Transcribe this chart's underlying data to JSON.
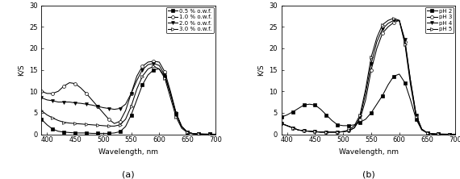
{
  "wavelengths": [
    390,
    400,
    410,
    420,
    430,
    440,
    450,
    460,
    470,
    480,
    490,
    500,
    510,
    520,
    530,
    540,
    550,
    560,
    570,
    580,
    590,
    600,
    610,
    620,
    630,
    640,
    650,
    660,
    670,
    680,
    690,
    700
  ],
  "a_series": {
    "s0p5": [
      3.5,
      2.2,
      1.2,
      0.7,
      0.5,
      0.4,
      0.3,
      0.3,
      0.3,
      0.2,
      0.2,
      0.2,
      0.2,
      0.3,
      0.6,
      1.8,
      4.5,
      8.0,
      11.5,
      13.8,
      15.0,
      15.2,
      13.5,
      9.5,
      4.8,
      1.8,
      0.5,
      0.15,
      0.05,
      0.02,
      0.01,
      0.0
    ],
    "s1p0": [
      10.0,
      9.5,
      9.5,
      10.0,
      11.2,
      12.0,
      11.8,
      10.8,
      9.5,
      8.0,
      6.5,
      5.0,
      3.5,
      2.5,
      3.0,
      5.5,
      9.5,
      13.5,
      15.8,
      16.8,
      17.0,
      16.8,
      14.5,
      10.0,
      5.0,
      1.8,
      0.5,
      0.15,
      0.05,
      0.02,
      0.01,
      0.0
    ],
    "s2p0": [
      8.5,
      8.0,
      7.8,
      7.5,
      7.5,
      7.5,
      7.3,
      7.2,
      7.0,
      6.8,
      6.5,
      6.2,
      6.0,
      5.8,
      6.0,
      7.0,
      9.5,
      12.5,
      15.0,
      16.2,
      16.5,
      16.0,
      13.8,
      9.5,
      4.8,
      1.8,
      0.5,
      0.15,
      0.05,
      0.02,
      0.01,
      0.0
    ],
    "s3p0": [
      5.5,
      4.5,
      3.8,
      3.2,
      2.8,
      2.6,
      2.5,
      2.4,
      2.3,
      2.2,
      2.1,
      2.0,
      1.9,
      1.9,
      2.2,
      3.5,
      6.5,
      10.5,
      13.5,
      15.2,
      15.8,
      15.2,
      13.0,
      8.5,
      4.0,
      1.4,
      0.4,
      0.1,
      0.03,
      0.01,
      0.0,
      0.0
    ]
  },
  "b_series": {
    "pH2": [
      4.0,
      4.5,
      5.2,
      6.0,
      6.8,
      7.0,
      6.8,
      5.8,
      4.5,
      3.2,
      2.2,
      2.0,
      2.0,
      2.2,
      2.8,
      3.5,
      5.0,
      7.0,
      9.0,
      11.5,
      13.5,
      14.0,
      12.0,
      8.0,
      3.5,
      1.0,
      0.3,
      0.08,
      0.02,
      0.01,
      0.0,
      0.0
    ],
    "pH3": [
      2.5,
      2.0,
      1.5,
      1.0,
      0.8,
      0.7,
      0.6,
      0.5,
      0.5,
      0.5,
      0.5,
      0.6,
      0.8,
      1.5,
      3.5,
      8.0,
      15.0,
      20.0,
      23.5,
      25.0,
      26.0,
      26.5,
      21.5,
      12.5,
      4.5,
      1.2,
      0.3,
      0.08,
      0.02,
      0.01,
      0.0,
      0.0
    ],
    "pH4": [
      2.5,
      2.0,
      1.5,
      1.0,
      0.8,
      0.7,
      0.6,
      0.5,
      0.5,
      0.5,
      0.5,
      0.6,
      0.8,
      1.5,
      4.0,
      9.5,
      16.5,
      21.5,
      24.5,
      25.8,
      26.5,
      26.5,
      22.0,
      12.5,
      4.5,
      1.2,
      0.3,
      0.08,
      0.02,
      0.01,
      0.0,
      0.0
    ],
    "pH5": [
      2.5,
      2.0,
      1.5,
      1.0,
      0.8,
      0.7,
      0.6,
      0.5,
      0.5,
      0.5,
      0.5,
      0.6,
      1.0,
      2.0,
      4.5,
      10.5,
      18.0,
      22.5,
      25.5,
      26.5,
      27.0,
      26.5,
      21.0,
      11.5,
      4.0,
      1.1,
      0.3,
      0.08,
      0.02,
      0.01,
      0.0,
      0.0
    ]
  },
  "xlim": [
    390,
    700
  ],
  "ylim": [
    0,
    30
  ],
  "xlabel": "Wavelength, nm",
  "ylabel": "K/S",
  "xticks": [
    400,
    450,
    500,
    550,
    600,
    650,
    700
  ],
  "yticks": [
    0,
    5,
    10,
    15,
    20,
    25,
    30
  ],
  "legend_a": [
    "0.5 % o.w.f.",
    "1.0 % o.w.f.",
    "2.0 % o.w.f.",
    "3.0 % o.w.f."
  ],
  "legend_b": [
    "pH 2",
    "pH 3",
    "pH 4",
    "pH 5"
  ],
  "label_a": "(a)",
  "label_b": "(b)",
  "markers_a": [
    "s",
    "o",
    "v",
    ">"
  ],
  "markers_b": [
    "s",
    "o",
    "v",
    ">"
  ],
  "fills_a": [
    "black",
    "white",
    "black",
    "white"
  ],
  "fills_b": [
    "black",
    "white",
    "black",
    "white"
  ],
  "marker_every_a": [
    2,
    2,
    2,
    2
  ],
  "marker_every_b": [
    2,
    2,
    2,
    2
  ]
}
